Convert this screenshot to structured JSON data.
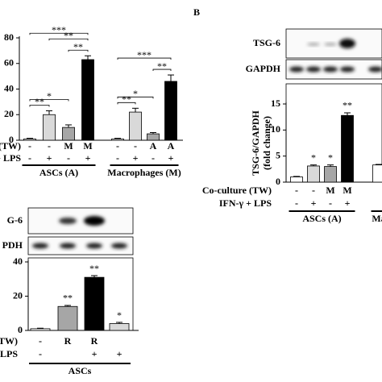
{
  "chart_data": [
    {
      "type": "bar",
      "ylim": [
        0,
        80
      ],
      "yticks": [
        0,
        20,
        40,
        60,
        80
      ],
      "values": [
        1,
        20,
        10,
        63,
        1,
        22,
        5,
        46
      ],
      "errors": [
        0.5,
        3,
        2,
        3,
        0.5,
        3,
        1,
        5
      ],
      "colors": [
        "#ffffff",
        "#d9d9d9",
        "#a6a6a6",
        "#000000",
        "#ffffff",
        "#d9d9d9",
        "#a6a6a6",
        "#000000"
      ],
      "rows": [
        {
          "label": "(TW)",
          "values": [
            "-",
            "-",
            "M",
            "M",
            "-",
            "-",
            "A",
            "A"
          ]
        },
        {
          "label": "+ LPS",
          "values": [
            "-",
            "+",
            "-",
            "+",
            "-",
            "+",
            "-",
            "+"
          ]
        }
      ],
      "groups": [
        {
          "label": "ASCs (A)",
          "from": 0,
          "to": 3
        },
        {
          "label": "Macrophages (M)",
          "from": 4,
          "to": 7
        }
      ],
      "brackets": [
        {
          "text": "**",
          "from": 0,
          "to": 1
        },
        {
          "text": "**",
          "from": 2,
          "to": 3
        },
        {
          "text": "*",
          "from": 0,
          "to": 2
        },
        {
          "text": "**",
          "from": 1,
          "to": 3
        },
        {
          "text": "***",
          "from": 0,
          "to": 3
        },
        {
          "text": "**",
          "from": 4,
          "to": 5
        },
        {
          "text": "**",
          "from": 6,
          "to": 7
        },
        {
          "text": "*",
          "from": 4,
          "to": 6
        },
        {
          "text": "***",
          "from": 4,
          "to": 7
        }
      ]
    },
    {
      "type": "bar",
      "panel": "B",
      "ylabel": [
        "TSG-6/GAPDH",
        "(fold change)"
      ],
      "ylim": [
        0,
        15
      ],
      "yticks": [
        0,
        5,
        10,
        15
      ],
      "values": [
        1,
        3.1,
        3,
        12.8,
        3.3
      ],
      "errors": [
        0.1,
        0.2,
        0.3,
        0.5,
        0.1
      ],
      "colors": [
        "#ffffff",
        "#d9d9d9",
        "#a6a6a6",
        "#000000",
        "#ffffff"
      ],
      "stars": [
        null,
        "*",
        "*",
        "**",
        null
      ],
      "blots": [
        "TSG-6",
        "GAPDH"
      ],
      "rows": [
        {
          "label": "Co-culture (TW)",
          "values": [
            "-",
            "-",
            "M",
            "M",
            null
          ]
        },
        {
          "label": "IFN-γ + LPS",
          "values": [
            "-",
            "+",
            "-",
            "+",
            null
          ]
        }
      ],
      "groups": [
        {
          "label": "ASCs (A)",
          "from": 0,
          "to": 3
        },
        {
          "label": "Ma",
          "from": 4,
          "to": 4
        }
      ]
    },
    {
      "type": "bar",
      "ylim": [
        0,
        40
      ],
      "yticks": [
        0,
        20,
        40
      ],
      "values": [
        1,
        14,
        31,
        4
      ],
      "errors": [
        0.3,
        0.6,
        1,
        0.7
      ],
      "colors": [
        "#ffffff",
        "#a6a6a6",
        "#000000",
        "#d9d9d9"
      ],
      "stars": [
        null,
        "**",
        "**",
        "*"
      ],
      "blots": [
        "G-6",
        "PDH"
      ],
      "rows": [
        {
          "label": "(TW)",
          "values": [
            "-",
            "R",
            "R",
            null
          ]
        },
        {
          "label": "LPS",
          "values": [
            "-",
            null,
            "+",
            "+"
          ]
        }
      ],
      "groups": [
        {
          "label": "ASCs",
          "from": 0,
          "to": 3
        }
      ]
    }
  ]
}
